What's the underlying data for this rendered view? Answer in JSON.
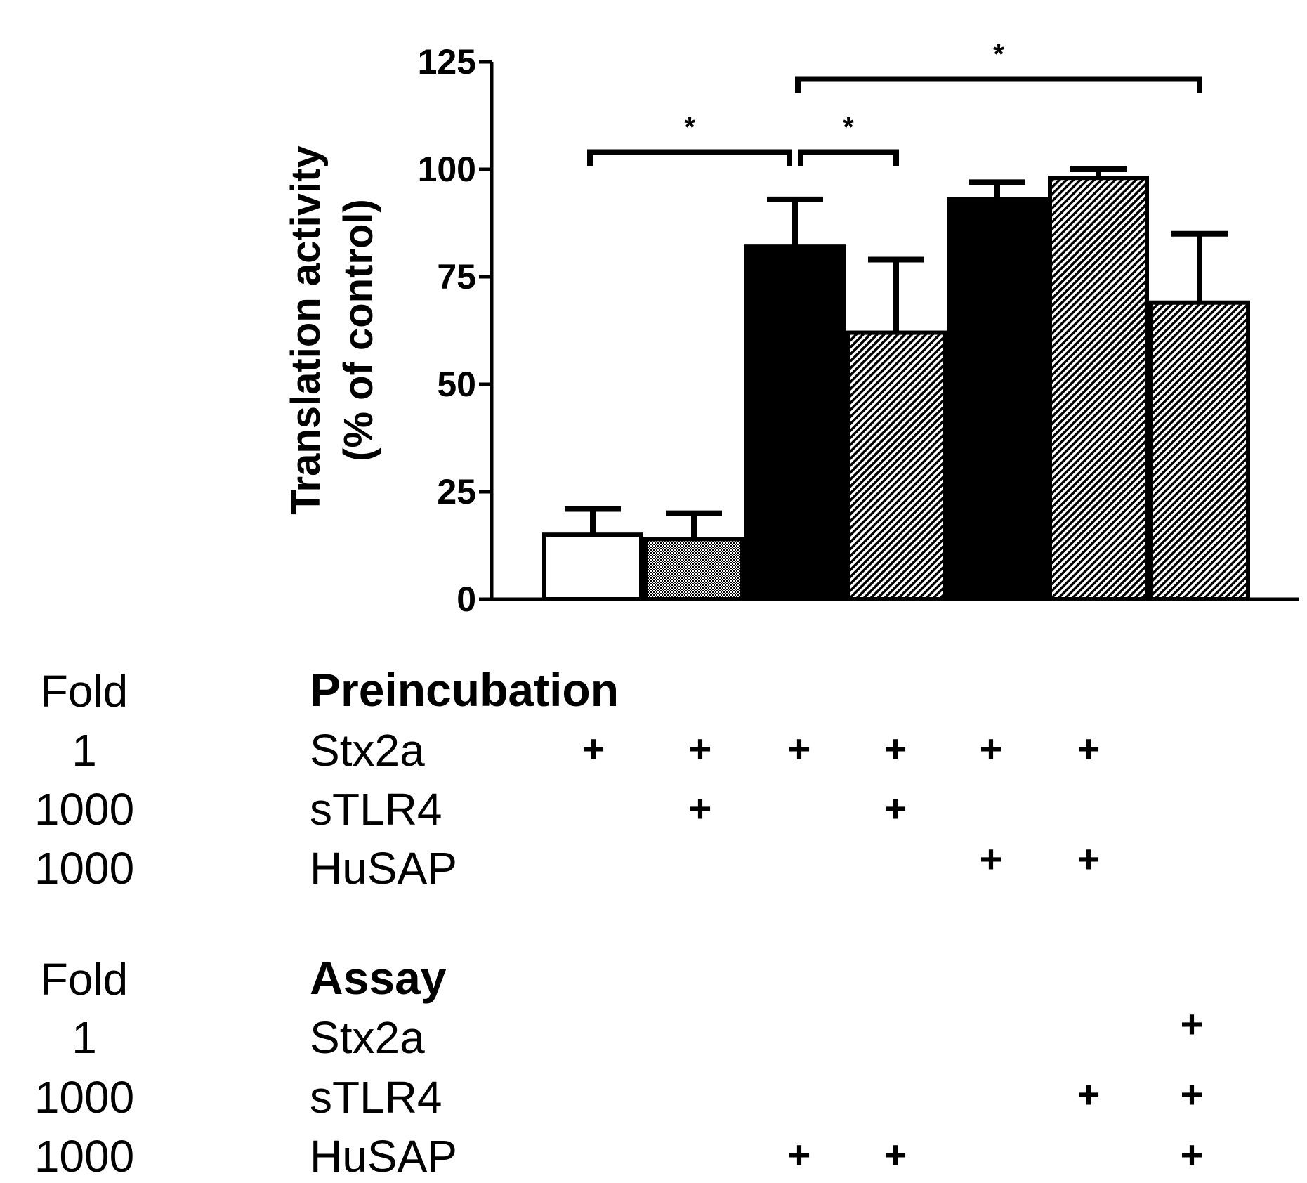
{
  "chart_data": {
    "type": "bar",
    "title": "",
    "xlabel": "",
    "ylabel_line1": "Translation activity",
    "ylabel_line2": "(% of control)",
    "ylim": [
      0,
      125
    ],
    "yticks": [
      0,
      25,
      50,
      75,
      100,
      125
    ],
    "ytick_labels": [
      "0",
      "25",
      "50",
      "75",
      "100",
      "125"
    ],
    "grid": false,
    "bars": [
      {
        "value": 15,
        "error": 6,
        "fill": "white"
      },
      {
        "value": 14,
        "error": 6,
        "fill": "dotted"
      },
      {
        "value": 82,
        "error": 11,
        "fill": "black"
      },
      {
        "value": 62,
        "error": 17,
        "fill": "hatched"
      },
      {
        "value": 93,
        "error": 4,
        "fill": "black"
      },
      {
        "value": 98,
        "error": 2,
        "fill": "hatched"
      },
      {
        "value": 69,
        "error": 16,
        "fill": "hatched"
      }
    ],
    "significance": [
      {
        "from_bar": 1,
        "to_bar": 3,
        "label": "*",
        "level": 104
      },
      {
        "from_bar": 3,
        "to_bar": 4,
        "label": "*",
        "level": 104
      },
      {
        "from_bar": 3,
        "to_bar": 7,
        "label": "*",
        "level": 121
      }
    ]
  },
  "table": {
    "preincubation": {
      "title": "Preincubation",
      "fold_header": "Fold",
      "rows": [
        {
          "fold": "1",
          "label": "Stx2a",
          "marks": [
            "+",
            "+",
            "+",
            "+",
            "+",
            "+",
            ""
          ]
        },
        {
          "fold": "1000",
          "label": "sTLR4",
          "marks": [
            "",
            "+",
            "",
            "+",
            "",
            "",
            ""
          ]
        },
        {
          "fold": "1000",
          "label": "HuSAP",
          "marks": [
            "",
            "",
            "",
            "",
            "+",
            "+",
            ""
          ]
        }
      ]
    },
    "assay": {
      "title": "Assay",
      "fold_header": "Fold",
      "rows": [
        {
          "fold": "1",
          "label": "Stx2a",
          "marks": [
            "",
            "",
            "",
            "",
            "",
            "",
            "+"
          ]
        },
        {
          "fold": "1000",
          "label": "sTLR4",
          "marks": [
            "",
            "",
            "",
            "",
            "",
            "+",
            "+"
          ]
        },
        {
          "fold": "1000",
          "label": "HuSAP",
          "marks": [
            "",
            "",
            "+",
            "+",
            "",
            "",
            "+"
          ]
        }
      ]
    }
  }
}
